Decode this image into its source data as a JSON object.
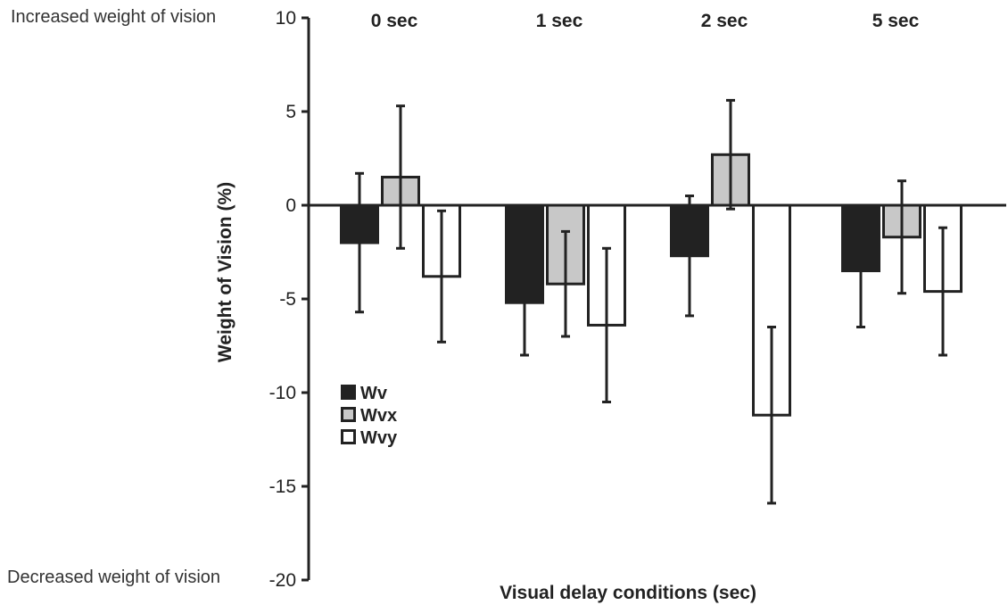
{
  "annotations": {
    "top": "Increased weight of vision",
    "bottom": "Decreased weight of vision"
  },
  "chart_data": {
    "type": "bar",
    "title": "",
    "xlabel": "Visual delay conditions (sec)",
    "ylabel": "Weight of Vision (%)",
    "ylim": [
      -20,
      10
    ],
    "yticks": [
      10,
      5,
      0,
      -5,
      -10,
      -15,
      -20
    ],
    "categories": [
      "0 sec",
      "1 sec",
      "2 sec",
      "5 sec"
    ],
    "series": [
      {
        "name": "Wv",
        "fill": "#222222",
        "values": [
          -2.0,
          -5.2,
          -2.7,
          -3.5
        ],
        "error": [
          3.7,
          2.8,
          3.2,
          3.0
        ]
      },
      {
        "name": "Wvx",
        "fill": "#c8c8c8",
        "values": [
          1.5,
          -4.2,
          2.7,
          -1.7
        ],
        "error": [
          3.8,
          2.8,
          2.9,
          3.0
        ]
      },
      {
        "name": "Wvy",
        "fill": "#ffffff",
        "values": [
          -3.8,
          -6.4,
          -11.2,
          -4.6
        ],
        "error": [
          3.5,
          4.1,
          4.7,
          3.4
        ]
      }
    ],
    "grid": false,
    "legend": "lower-left"
  },
  "colors": {
    "axis": "#222222",
    "bar_outline": "#222222",
    "text": "#222222",
    "side_text": "#333333"
  }
}
